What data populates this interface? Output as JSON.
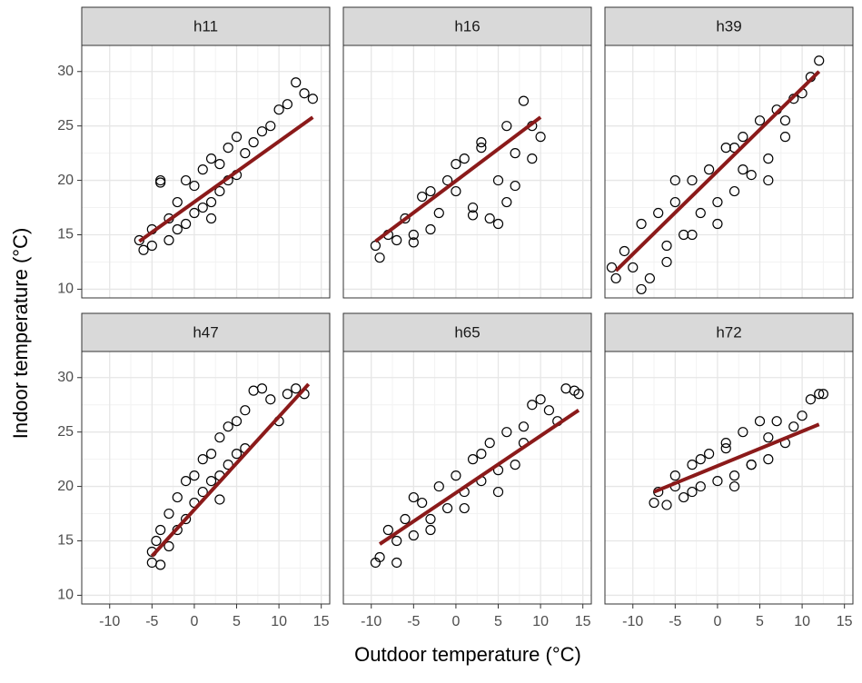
{
  "chart_data": {
    "type": "scatter",
    "x_label": "Outdoor temperature (°C)",
    "y_label": "Indoor temperature (°C)",
    "xlim": [
      -13.3,
      16.0
    ],
    "ylim": [
      9.2,
      32.4
    ],
    "xticks": [
      -10,
      -5,
      0,
      5,
      10,
      15
    ],
    "yticks": [
      10,
      15,
      20,
      25,
      30
    ],
    "grid": true,
    "minor_grid": true,
    "point_color": "#000000",
    "fit_color": "#8b1a1a",
    "panels": [
      {
        "title": "h11",
        "x": [
          -6.5,
          -6,
          -5,
          -5,
          -4,
          -3,
          -3,
          -2,
          -2,
          -1,
          -1,
          0,
          0,
          1,
          1,
          2,
          2,
          3,
          3,
          4,
          4,
          5,
          5,
          6,
          7,
          8,
          9,
          10,
          11,
          12,
          13,
          14,
          -4,
          2
        ],
        "y": [
          14.5,
          13.6,
          15.5,
          14,
          19.8,
          16.5,
          14.5,
          18,
          15.5,
          20,
          16,
          19.5,
          17,
          21,
          17.5,
          22,
          18,
          21.5,
          19,
          23,
          20,
          24,
          20.5,
          22.5,
          23.5,
          24.5,
          25,
          26.5,
          27,
          29,
          28,
          27.5,
          20,
          16.5
        ],
        "fit": {
          "x": [
            -6.5,
            14
          ],
          "y": [
            14.4,
            25.8
          ]
        }
      },
      {
        "title": "h16",
        "x": [
          -9.5,
          -9,
          -8,
          -7,
          -6,
          -5,
          -4,
          -3,
          -2,
          -1,
          0,
          1,
          2,
          3,
          4,
          5,
          6,
          7,
          8,
          9,
          10,
          -3,
          0,
          3,
          5,
          7,
          9,
          -5,
          2,
          6
        ],
        "y": [
          14,
          12.9,
          15,
          14.5,
          16.5,
          15,
          18.5,
          19,
          17,
          20,
          21.5,
          22,
          17.5,
          23,
          16.5,
          20,
          18,
          22.5,
          27.3,
          25,
          24,
          15.5,
          19,
          23.5,
          16,
          19.5,
          22,
          14.3,
          16.8,
          25
        ],
        "fit": {
          "x": [
            -9.5,
            10
          ],
          "y": [
            14.4,
            25.8
          ]
        }
      },
      {
        "title": "h39",
        "x": [
          -12.5,
          -12,
          -11,
          -10,
          -9,
          -8,
          -7,
          -6,
          -5,
          -4,
          -3,
          -2,
          -1,
          0,
          1,
          2,
          3,
          4,
          5,
          6,
          7,
          8,
          9,
          10,
          11,
          12,
          -9,
          -6,
          -3,
          0,
          3,
          6,
          -5,
          2,
          8
        ],
        "y": [
          12,
          11,
          13.5,
          12,
          16,
          11,
          17,
          14,
          18,
          15,
          20,
          17,
          21,
          18,
          23,
          19,
          24,
          20.5,
          25.5,
          22,
          26.5,
          24,
          27.5,
          28,
          29.5,
          31,
          10,
          12.5,
          15,
          16,
          21,
          20,
          20,
          23,
          25.5
        ],
        "fit": {
          "x": [
            -12,
            12
          ],
          "y": [
            11.7,
            30
          ]
        }
      },
      {
        "title": "h47",
        "x": [
          -5,
          -5,
          -4,
          -4,
          -3,
          -3,
          -2,
          -2,
          -1,
          -1,
          0,
          0,
          1,
          1,
          2,
          2,
          3,
          3,
          4,
          4,
          5,
          5,
          6,
          6,
          7,
          8,
          9,
          10,
          11,
          12,
          13,
          -4.5,
          3
        ],
        "y": [
          14,
          13,
          16,
          12.8,
          17.5,
          14.5,
          19,
          16,
          20.5,
          17,
          21,
          18.5,
          22.5,
          19.5,
          23,
          20.5,
          24.5,
          21,
          25.5,
          22,
          26,
          23,
          27,
          23.5,
          28.8,
          29,
          28,
          26,
          28.5,
          29,
          28.5,
          15,
          18.8
        ],
        "fit": {
          "x": [
            -5,
            13.5
          ],
          "y": [
            13.6,
            29.4
          ]
        }
      },
      {
        "title": "h65",
        "x": [
          -9.5,
          -9,
          -8,
          -7,
          -6,
          -5,
          -4,
          -3,
          -2,
          -1,
          0,
          1,
          2,
          3,
          4,
          5,
          6,
          7,
          8,
          9,
          10,
          11,
          12,
          13,
          14,
          14.5,
          -7,
          -3,
          1,
          5,
          -5,
          3,
          8
        ],
        "y": [
          13,
          13.5,
          16,
          15,
          17,
          15.5,
          18.5,
          17,
          20,
          18,
          21,
          19.5,
          22.5,
          20.5,
          24,
          21.5,
          25,
          22,
          25.5,
          27.5,
          28,
          27,
          26,
          29,
          28.8,
          28.5,
          13,
          16,
          18,
          19.5,
          19,
          23,
          24
        ],
        "fit": {
          "x": [
            -9,
            14.5
          ],
          "y": [
            14.7,
            27
          ]
        }
      },
      {
        "title": "h72",
        "x": [
          -7.5,
          -7,
          -6,
          -5,
          -4,
          -3,
          -2,
          -1,
          0,
          1,
          2,
          3,
          4,
          5,
          6,
          7,
          8,
          9,
          10,
          11,
          12,
          12.5,
          -5,
          -2,
          1,
          4,
          -3,
          2,
          6
        ],
        "y": [
          18.5,
          19.5,
          18.3,
          21,
          19,
          22,
          20,
          23,
          20.5,
          24,
          21,
          25,
          22,
          26,
          22.5,
          26,
          24,
          25.5,
          26.5,
          28,
          28.5,
          28.5,
          20,
          22.5,
          23.5,
          22,
          19.5,
          20,
          24.5
        ],
        "fit": {
          "x": [
            -7.5,
            12
          ],
          "y": [
            19.5,
            25.7
          ]
        }
      }
    ]
  }
}
